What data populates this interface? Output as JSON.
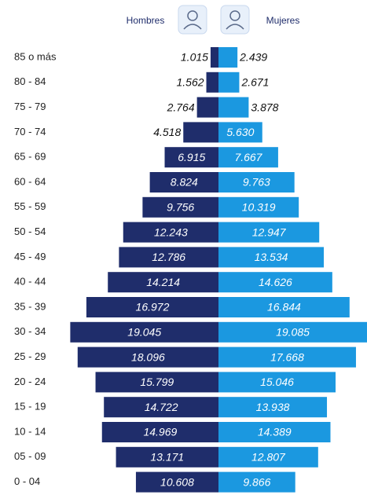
{
  "chart_data": {
    "type": "pyramid",
    "categories": [
      "85 o más",
      "80 - 84",
      "75 - 79",
      "70 - 74",
      "65 - 69",
      "60 - 64",
      "55 - 59",
      "50 - 54",
      "45 - 49",
      "40 - 44",
      "35 - 39",
      "30 - 34",
      "25 - 29",
      "20 - 24",
      "15 - 19",
      "10 - 14",
      "05 - 09",
      "0 - 04"
    ],
    "series": [
      {
        "name": "Hombres",
        "color": "#1f2d6b",
        "values": [
          1015,
          1562,
          2764,
          4518,
          6915,
          8824,
          9756,
          12243,
          12786,
          14214,
          16972,
          19045,
          18096,
          15799,
          14722,
          14969,
          13171,
          10608
        ],
        "value_labels": [
          "1.015",
          "1.562",
          "2.764",
          "4.518",
          "6.915",
          "8.824",
          "9.756",
          "12.243",
          "12.786",
          "14.214",
          "16.972",
          "19.045",
          "18.096",
          "15.799",
          "14.722",
          "14.969",
          "13.171",
          "10.608"
        ]
      },
      {
        "name": "Mujeres",
        "color": "#1b98e0",
        "values": [
          2439,
          2671,
          3878,
          5630,
          7667,
          9763,
          10319,
          12947,
          13534,
          14626,
          16844,
          19085,
          17668,
          15046,
          13938,
          14389,
          12807,
          9866
        ],
        "value_labels": [
          "2.439",
          "2.671",
          "3.878",
          "5.630",
          "7.667",
          "9.763",
          "10.319",
          "12.947",
          "13.534",
          "14.626",
          "16.844",
          "19.085",
          "17.668",
          "15.046",
          "13.938",
          "14.389",
          "12.807",
          "9.866"
        ]
      }
    ]
  }
}
